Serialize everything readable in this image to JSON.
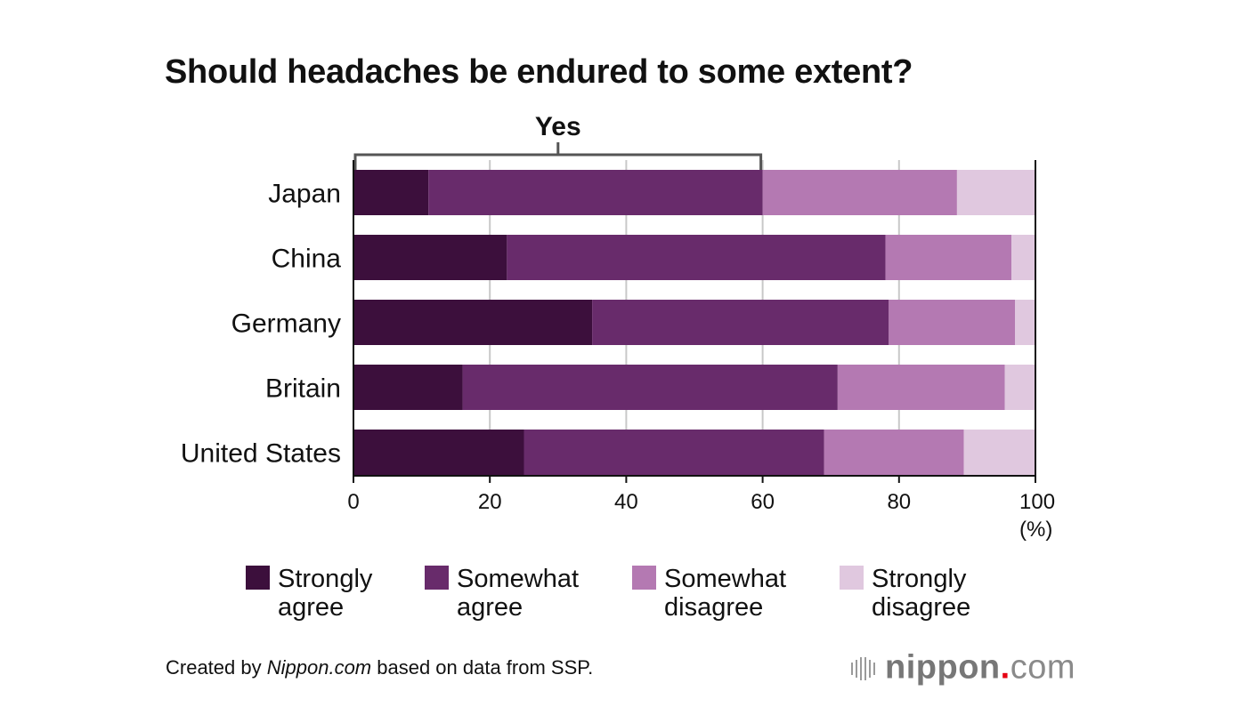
{
  "chart_data": {
    "type": "bar",
    "orientation": "horizontal",
    "stacked": true,
    "title": "Should headaches be endured to some extent?",
    "annotation": "Yes",
    "annotation_range": [
      0,
      60
    ],
    "categories": [
      "Japan",
      "China",
      "Germany",
      "Britain",
      "United States"
    ],
    "series": [
      {
        "name": "Strongly agree",
        "legend": [
          "Strongly",
          "agree"
        ],
        "color": "#3c0f3c",
        "values": [
          11,
          22.5,
          35,
          16,
          25
        ]
      },
      {
        "name": "Somewhat agree",
        "legend": [
          "Somewhat",
          "agree"
        ],
        "color": "#682b6b",
        "values": [
          49,
          55.5,
          43.5,
          55,
          44
        ]
      },
      {
        "name": "Somewhat disagree",
        "legend": [
          "Somewhat",
          "disagree"
        ],
        "color": "#b479b2",
        "values": [
          28.5,
          18.5,
          18.5,
          24.5,
          20.5
        ]
      },
      {
        "name": "Strongly disagree",
        "legend": [
          "Strongly",
          "disagree"
        ],
        "color": "#e0c8df",
        "values": [
          11.5,
          3.5,
          3,
          4.5,
          10.5
        ]
      }
    ],
    "xlim": [
      0,
      100
    ],
    "xticks": [
      0,
      20,
      40,
      60,
      80,
      100
    ],
    "xunit": "(%)",
    "grid": true,
    "legend_position": "bottom"
  },
  "footer": {
    "credit_prefix": "Created by ",
    "credit_source": "Nippon.com",
    "credit_suffix": " based on data from SSP."
  },
  "logo": {
    "brand": "nippon",
    "dot": ".",
    "tld": "com"
  }
}
